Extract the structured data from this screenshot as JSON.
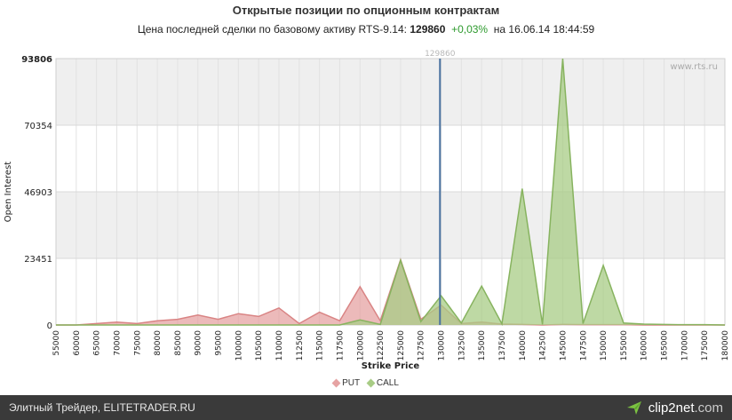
{
  "header": {
    "title": "Открытые позиции по опционным контрактам",
    "sub_prefix": "Цена последней сделки по базовому активу RTS-9.14:",
    "price": "129860",
    "change": "+0,03%",
    "sub_suffix": "на 16.06.14 18:44:59"
  },
  "watermark": "www.rts.ru",
  "footer": {
    "text": "Элитный Трейдер, ELITETRADER.RU",
    "brand": "clip2net",
    "brand_suffix": ".com"
  },
  "colors": {
    "put": "#e6a3a3",
    "put_line": "#d98484",
    "call": "#a8cc85",
    "call_line": "#87b35f",
    "price_line": "#4a72a0"
  },
  "chart_data": {
    "type": "area",
    "xlabel": "Strike Price",
    "ylabel": "Open Interest",
    "y_ticks": [
      0,
      23451,
      46903,
      70354,
      93806
    ],
    "ylim": [
      0,
      93806
    ],
    "categories": [
      "55000",
      "60000",
      "65000",
      "70000",
      "75000",
      "80000",
      "85000",
      "90000",
      "95000",
      "100000",
      "105000",
      "110000",
      "112500",
      "115000",
      "117500",
      "120000",
      "122500",
      "125000",
      "127500",
      "130000",
      "132500",
      "135000",
      "137500",
      "140000",
      "142500",
      "145000",
      "147500",
      "150000",
      "155000",
      "160000",
      "165000",
      "170000",
      "175000",
      "180000"
    ],
    "series": [
      {
        "name": "PUT",
        "values": [
          0,
          0,
          500,
          1000,
          500,
          1500,
          2000,
          3500,
          2000,
          4000,
          3000,
          6000,
          500,
          4500,
          1500,
          13500,
          1500,
          23000,
          2000,
          7000,
          500,
          1000,
          300,
          200,
          0,
          200,
          100,
          100,
          100,
          0,
          0,
          0,
          0,
          0
        ]
      },
      {
        "name": "CALL",
        "values": [
          0,
          0,
          0,
          0,
          0,
          0,
          0,
          0,
          0,
          0,
          0,
          0,
          0,
          0,
          0,
          1800,
          200,
          22800,
          1200,
          10300,
          700,
          13700,
          400,
          48000,
          200,
          93806,
          500,
          21000,
          700,
          300,
          200,
          100,
          100,
          0
        ]
      }
    ],
    "vertical_marker": {
      "value": 129860,
      "label": "129860"
    },
    "legend": [
      "PUT",
      "CALL"
    ],
    "grid": true
  }
}
